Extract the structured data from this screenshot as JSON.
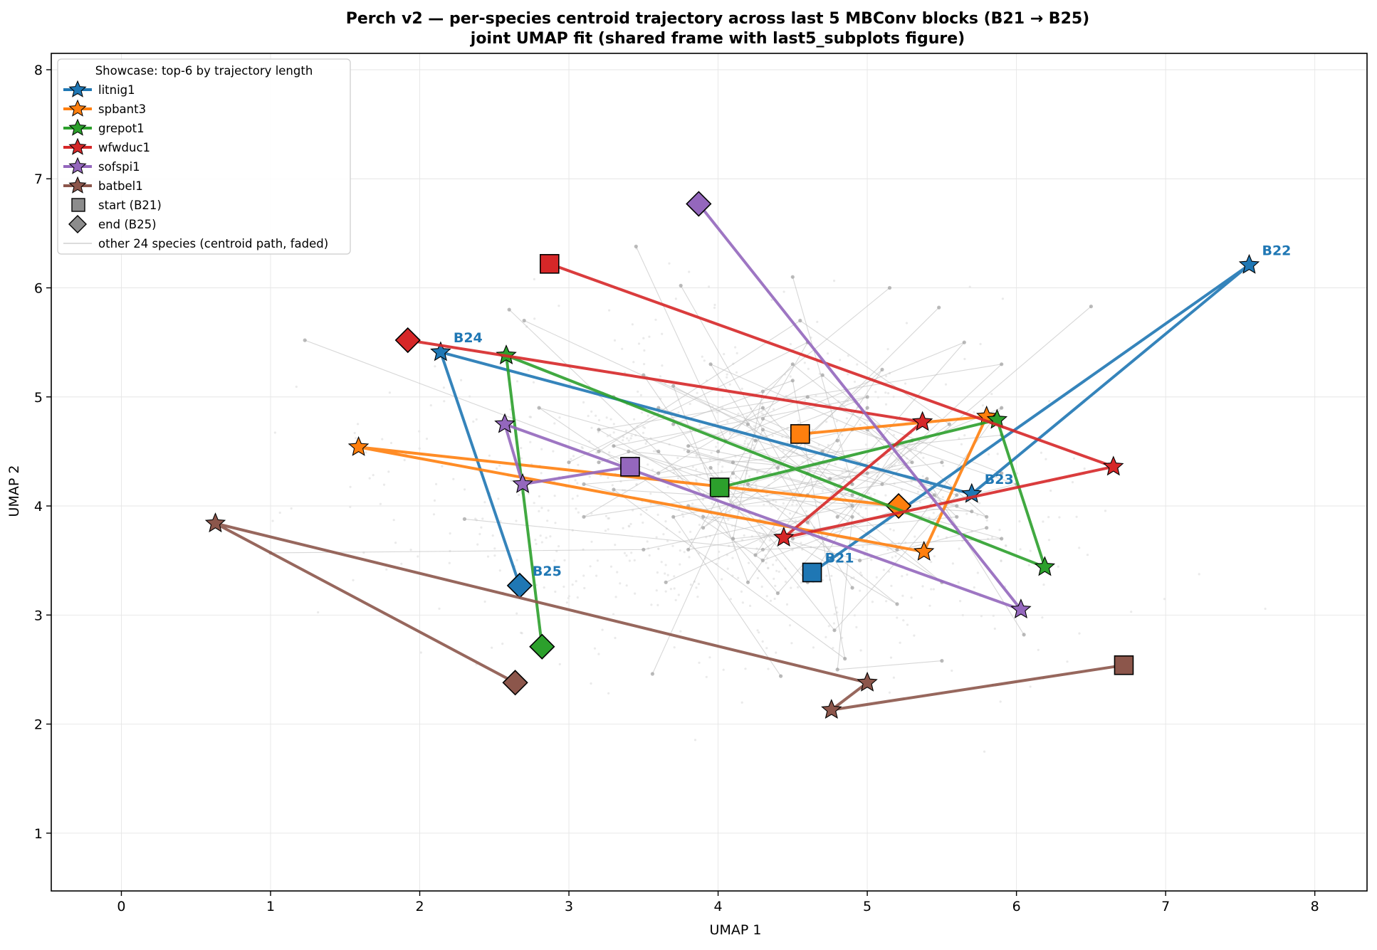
{
  "chart_data": {
    "type": "line",
    "title_line1": "Perch v2 — per-species centroid trajectory across last 5 MBConv blocks (B21 → B25)",
    "title_line2": "joint UMAP fit (shared frame with last5_subplots figure)",
    "xlabel": "UMAP 1",
    "ylabel": "UMAP 2",
    "xlim": [
      -0.47,
      8.35
    ],
    "ylim": [
      0.47,
      8.15
    ],
    "xticks": [
      0,
      1,
      2,
      3,
      4,
      5,
      6,
      7,
      8
    ],
    "yticks": [
      1,
      2,
      3,
      4,
      5,
      6,
      7,
      8
    ],
    "grid": true,
    "legend": {
      "title": "Showcase: top-6 by trajectory length",
      "position": "top-left",
      "marker_entries": [
        {
          "label": "start (B21)",
          "marker": "square"
        },
        {
          "label": "end (B25)",
          "marker": "diamond"
        }
      ],
      "faded_entry": "other 24 species (centroid path, faded)"
    },
    "block_labels": [
      "B21",
      "B22",
      "B23",
      "B24",
      "B25"
    ],
    "annotated_series": "litnig1",
    "series": [
      {
        "name": "litnig1",
        "color": "#1f77b4",
        "points": [
          [
            4.63,
            3.39
          ],
          [
            7.56,
            6.21
          ],
          [
            5.7,
            4.11
          ],
          [
            2.14,
            5.41
          ],
          [
            2.67,
            3.27
          ]
        ]
      },
      {
        "name": "spbant3",
        "color": "#ff7f0e",
        "points": [
          [
            4.55,
            4.66
          ],
          [
            5.8,
            4.82
          ],
          [
            5.38,
            3.58
          ],
          [
            1.59,
            4.54
          ],
          [
            5.21,
            4.0
          ]
        ]
      },
      {
        "name": "grepot1",
        "color": "#2ca02c",
        "points": [
          [
            4.01,
            4.17
          ],
          [
            5.87,
            4.79
          ],
          [
            6.19,
            3.44
          ],
          [
            2.58,
            5.38
          ],
          [
            2.82,
            2.71
          ]
        ]
      },
      {
        "name": "wfwduc1",
        "color": "#d62728",
        "points": [
          [
            2.87,
            6.22
          ],
          [
            6.65,
            4.36
          ],
          [
            4.44,
            3.71
          ],
          [
            5.37,
            4.77
          ],
          [
            1.92,
            5.52
          ]
        ]
      },
      {
        "name": "sofspi1",
        "color": "#9467bd",
        "points": [
          [
            3.41,
            4.36
          ],
          [
            2.69,
            4.2
          ],
          [
            2.57,
            4.75
          ],
          [
            6.03,
            3.05
          ],
          [
            3.87,
            6.77
          ]
        ]
      },
      {
        "name": "batbel1",
        "color": "#8c564b",
        "points": [
          [
            6.72,
            2.54
          ],
          [
            4.76,
            2.13
          ],
          [
            5.0,
            2.38
          ],
          [
            0.63,
            3.84
          ],
          [
            2.64,
            2.38
          ]
        ]
      }
    ],
    "faded_species_count": 24,
    "faded_paths": [
      [
        [
          3.0,
          4.4
        ],
        [
          4.6,
          5.5
        ],
        [
          3.8,
          3.6
        ],
        [
          5.6,
          4.0
        ],
        [
          4.3,
          4.8
        ]
      ],
      [
        [
          4.1,
          4.3
        ],
        [
          5.2,
          3.1
        ],
        [
          3.2,
          4.7
        ],
        [
          5.9,
          5.3
        ],
        [
          4.8,
          3.9
        ]
      ],
      [
        [
          2.6,
          5.8
        ],
        [
          3.9,
          4.1
        ],
        [
          5.3,
          4.6
        ],
        [
          4.4,
          3.2
        ],
        [
          3.6,
          4.5
        ]
      ],
      [
        [
          3.6,
          4.9
        ],
        [
          5.8,
          3.9
        ],
        [
          4.7,
          5.2
        ],
        [
          3.1,
          3.9
        ],
        [
          5.5,
          4.4
        ]
      ],
      [
        [
          4.5,
          6.1
        ],
        [
          4.9,
          4.2
        ],
        [
          3.7,
          5.1
        ],
        [
          4.2,
          3.3
        ],
        [
          5.0,
          4.9
        ]
      ],
      [
        [
          1.23,
          5.52
        ],
        [
          3.6,
          4.3
        ],
        [
          4.9,
          4.7
        ],
        [
          6.0,
          4.2
        ],
        [
          4.5,
          3.7
        ]
      ],
      [
        [
          2.3,
          3.88
        ],
        [
          4.3,
          3.6
        ],
        [
          5.9,
          3.7
        ],
        [
          3.8,
          4.5
        ],
        [
          4.9,
          4.1
        ]
      ],
      [
        [
          3.45,
          6.38
        ],
        [
          4.05,
          4.6
        ],
        [
          5.65,
          5.5
        ],
        [
          4.6,
          3.85
        ],
        [
          3.9,
          3.9
        ]
      ],
      [
        [
          3.56,
          2.46
        ],
        [
          4.3,
          4.7
        ],
        [
          5.6,
          4.1
        ],
        [
          4.78,
          2.86
        ],
        [
          4.0,
          4.2
        ]
      ],
      [
        [
          5.48,
          5.82
        ],
        [
          4.4,
          4.35
        ],
        [
          3.1,
          4.2
        ],
        [
          4.95,
          3.5
        ],
        [
          5.8,
          3.8
        ]
      ],
      [
        [
          6.5,
          5.83
        ],
        [
          5.1,
          4.2
        ],
        [
          3.8,
          4.55
        ],
        [
          4.6,
          5.0
        ],
        [
          5.9,
          4.3
        ]
      ],
      [
        [
          1.0,
          3.57
        ],
        [
          3.5,
          3.6
        ],
        [
          4.9,
          4.0
        ],
        [
          4.3,
          4.9
        ],
        [
          3.2,
          4.4
        ]
      ],
      [
        [
          6.05,
          2.82
        ],
        [
          5.4,
          4.25
        ],
        [
          4.1,
          4.0
        ],
        [
          3.5,
          5.2
        ],
        [
          4.7,
          4.5
        ]
      ],
      [
        [
          3.75,
          6.02
        ],
        [
          4.55,
          4.1
        ],
        [
          5.1,
          5.25
        ],
        [
          3.9,
          3.8
        ],
        [
          4.8,
          4.6
        ]
      ],
      [
        [
          4.42,
          2.44
        ],
        [
          3.7,
          3.9
        ],
        [
          5.3,
          4.4
        ],
        [
          4.5,
          5.3
        ],
        [
          4.0,
          4.5
        ]
      ],
      [
        [
          5.5,
          2.58
        ],
        [
          4.8,
          2.5
        ],
        [
          4.9,
          3.9
        ],
        [
          3.4,
          4.5
        ],
        [
          5.0,
          4.3
        ]
      ],
      [
        [
          5.15,
          6.0
        ],
        [
          4.3,
          5.05
        ],
        [
          4.1,
          3.7
        ],
        [
          5.6,
          3.9
        ],
        [
          5.0,
          4.7
        ]
      ],
      [
        [
          2.7,
          5.7
        ],
        [
          4.2,
          4.75
        ],
        [
          5.5,
          3.3
        ],
        [
          4.6,
          4.1
        ],
        [
          4.2,
          4.2
        ]
      ],
      [
        [
          3.3,
          5.0
        ],
        [
          4.75,
          4.25
        ],
        [
          5.9,
          4.9
        ],
        [
          5.2,
          3.6
        ],
        [
          3.8,
          4.0
        ]
      ],
      [
        [
          5.9,
          4.65
        ],
        [
          4.1,
          4.4
        ],
        [
          2.8,
          4.9
        ],
        [
          4.3,
          3.5
        ],
        [
          5.45,
          4.1
        ]
      ],
      [
        [
          3.65,
          3.3
        ],
        [
          4.6,
          3.9
        ],
        [
          3.3,
          4.55
        ],
        [
          5.0,
          5.0
        ],
        [
          4.25,
          4.6
        ]
      ],
      [
        [
          4.9,
          3.25
        ],
        [
          3.95,
          5.3
        ],
        [
          5.2,
          4.55
        ],
        [
          4.6,
          3.3
        ],
        [
          3.95,
          4.35
        ]
      ],
      [
        [
          3.2,
          4.5
        ],
        [
          4.55,
          5.7
        ],
        [
          5.55,
          4.75
        ],
        [
          4.25,
          3.55
        ],
        [
          4.6,
          4.3
        ]
      ],
      [
        [
          5.7,
          3.95
        ],
        [
          3.3,
          4.15
        ],
        [
          4.85,
          2.6
        ],
        [
          4.5,
          5.15
        ],
        [
          3.7,
          4.75
        ]
      ]
    ]
  }
}
